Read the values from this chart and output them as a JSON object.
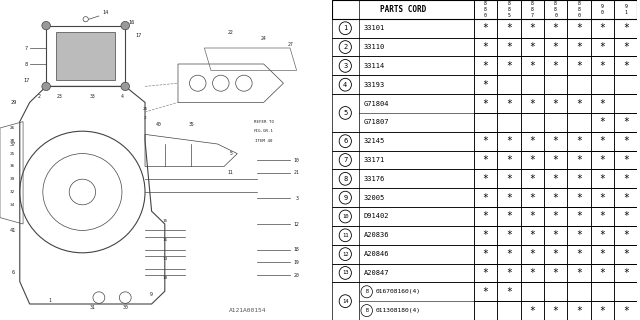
{
  "watermark": "A121A00154",
  "table_header": "PARTS CORD",
  "col_headers": [
    "8\n8\n0",
    "8\n8\n5",
    "8\n8\n7",
    "8\n8\n0",
    "8\n8\n0",
    "9\n0",
    "9\n1"
  ],
  "rows": [
    {
      "num": 1,
      "code": "33101",
      "stars": [
        1,
        1,
        1,
        1,
        1,
        1,
        1
      ],
      "merged": false,
      "sub": false
    },
    {
      "num": 2,
      "code": "33110",
      "stars": [
        1,
        1,
        1,
        1,
        1,
        1,
        1
      ],
      "merged": false,
      "sub": false
    },
    {
      "num": 3,
      "code": "33114",
      "stars": [
        1,
        1,
        1,
        1,
        1,
        1,
        1
      ],
      "merged": false,
      "sub": false
    },
    {
      "num": 4,
      "code": "33193",
      "stars": [
        1,
        0,
        0,
        0,
        0,
        0,
        0
      ],
      "merged": false,
      "sub": false
    },
    {
      "num": 5,
      "code": "G71804",
      "stars": [
        1,
        1,
        1,
        1,
        1,
        1,
        0
      ],
      "merged": true,
      "sub": false,
      "code2": "G71807",
      "stars2": [
        0,
        0,
        0,
        0,
        0,
        1,
        1
      ]
    },
    {
      "num": 6,
      "code": "32145",
      "stars": [
        1,
        1,
        1,
        1,
        1,
        1,
        1
      ],
      "merged": false,
      "sub": false
    },
    {
      "num": 7,
      "code": "33171",
      "stars": [
        1,
        1,
        1,
        1,
        1,
        1,
        1
      ],
      "merged": false,
      "sub": false
    },
    {
      "num": 8,
      "code": "33176",
      "stars": [
        1,
        1,
        1,
        1,
        1,
        1,
        1
      ],
      "merged": false,
      "sub": false
    },
    {
      "num": 9,
      "code": "32005",
      "stars": [
        1,
        1,
        1,
        1,
        1,
        1,
        1
      ],
      "merged": false,
      "sub": false
    },
    {
      "num": 10,
      "code": "D91402",
      "stars": [
        1,
        1,
        1,
        1,
        1,
        1,
        1
      ],
      "merged": false,
      "sub": false
    },
    {
      "num": 11,
      "code": "A20836",
      "stars": [
        1,
        1,
        1,
        1,
        1,
        1,
        1
      ],
      "merged": false,
      "sub": false
    },
    {
      "num": 12,
      "code": "A20846",
      "stars": [
        1,
        1,
        1,
        1,
        1,
        1,
        1
      ],
      "merged": false,
      "sub": false
    },
    {
      "num": 13,
      "code": "A20847",
      "stars": [
        1,
        1,
        1,
        1,
        1,
        1,
        1
      ],
      "merged": false,
      "sub": false
    },
    {
      "num": 14,
      "code": "016708160(4)",
      "stars": [
        1,
        1,
        0,
        0,
        0,
        0,
        0
      ],
      "merged": true,
      "sub": true,
      "code2": "011308180(4)",
      "stars2": [
        0,
        0,
        1,
        1,
        1,
        1,
        1
      ]
    }
  ],
  "bg_color": "#ffffff",
  "line_color": "#000000"
}
